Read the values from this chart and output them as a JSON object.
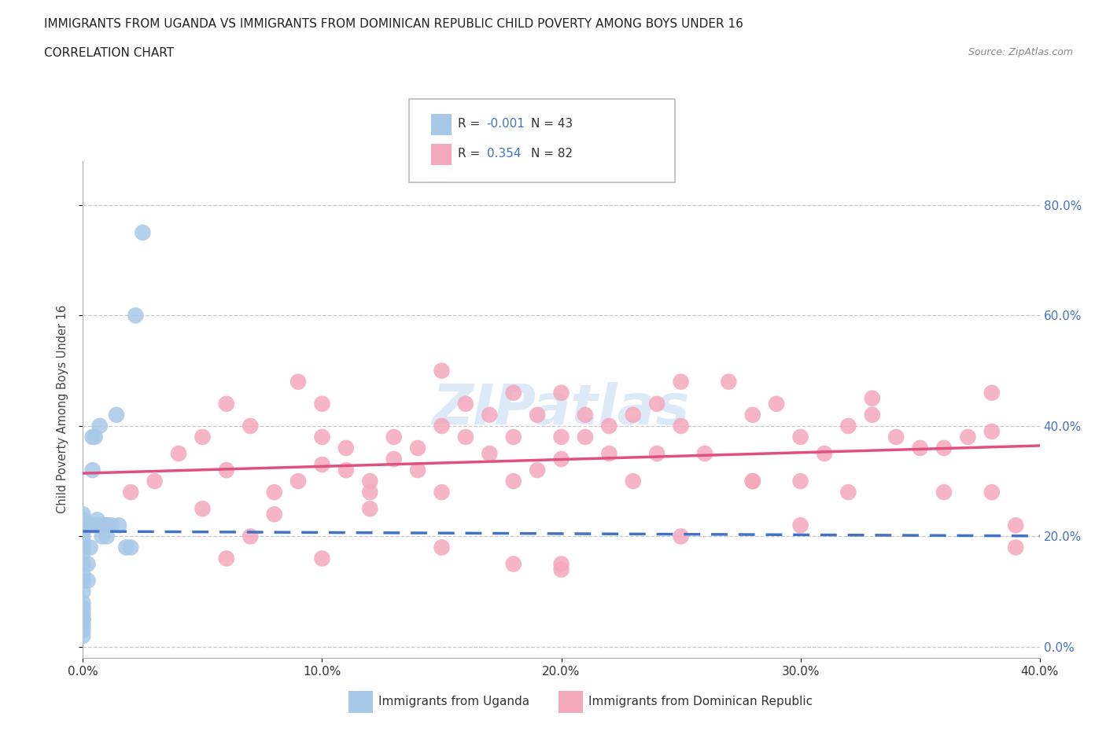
{
  "title": "IMMIGRANTS FROM UGANDA VS IMMIGRANTS FROM DOMINICAN REPUBLIC CHILD POVERTY AMONG BOYS UNDER 16",
  "subtitle": "CORRELATION CHART",
  "source": "Source: ZipAtlas.com",
  "ylabel": "Child Poverty Among Boys Under 16",
  "legend_label1": "Immigrants from Uganda",
  "legend_label2": "Immigrants from Dominican Republic",
  "R1": "-0.001",
  "N1": "43",
  "R2": "0.354",
  "N2": "82",
  "color_uganda": "#a8c8e8",
  "color_dominican": "#f4a8bc",
  "color_uganda_line": "#4472c4",
  "color_dominican_line": "#e05080",
  "color_R_value": "#4472c4",
  "watermark": "ZIPatlas",
  "uganda_x": [
    0.0,
    0.0,
    0.0,
    0.0,
    0.0,
    0.0,
    0.0,
    0.0,
    0.0,
    0.0,
    0.0,
    0.0,
    0.0,
    0.0,
    0.0,
    0.0,
    0.0,
    0.0,
    0.0,
    0.0,
    0.002,
    0.002,
    0.002,
    0.003,
    0.003,
    0.004,
    0.004,
    0.005,
    0.005,
    0.006,
    0.006,
    0.007,
    0.008,
    0.009,
    0.01,
    0.01,
    0.012,
    0.014,
    0.015,
    0.018,
    0.02,
    0.022,
    0.025
  ],
  "uganda_y": [
    0.05,
    0.07,
    0.1,
    0.12,
    0.13,
    0.15,
    0.17,
    0.18,
    0.19,
    0.2,
    0.21,
    0.22,
    0.23,
    0.24,
    0.02,
    0.03,
    0.04,
    0.05,
    0.06,
    0.08,
    0.12,
    0.15,
    0.22,
    0.18,
    0.22,
    0.32,
    0.38,
    0.22,
    0.38,
    0.22,
    0.23,
    0.4,
    0.2,
    0.22,
    0.2,
    0.22,
    0.22,
    0.42,
    0.22,
    0.18,
    0.18,
    0.6,
    0.75
  ],
  "dominican_x": [
    0.01,
    0.02,
    0.03,
    0.04,
    0.05,
    0.05,
    0.06,
    0.06,
    0.07,
    0.08,
    0.09,
    0.09,
    0.1,
    0.1,
    0.1,
    0.11,
    0.11,
    0.12,
    0.12,
    0.13,
    0.13,
    0.14,
    0.14,
    0.15,
    0.15,
    0.15,
    0.16,
    0.16,
    0.17,
    0.17,
    0.18,
    0.18,
    0.18,
    0.19,
    0.19,
    0.2,
    0.2,
    0.2,
    0.21,
    0.21,
    0.22,
    0.22,
    0.23,
    0.23,
    0.24,
    0.24,
    0.25,
    0.25,
    0.26,
    0.27,
    0.28,
    0.28,
    0.29,
    0.3,
    0.3,
    0.3,
    0.31,
    0.32,
    0.32,
    0.33,
    0.34,
    0.35,
    0.36,
    0.36,
    0.37,
    0.38,
    0.38,
    0.38,
    0.39,
    0.39,
    0.2,
    0.15,
    0.1,
    0.07,
    0.25,
    0.12,
    0.18,
    0.08,
    0.06,
    0.28,
    0.33,
    0.2
  ],
  "dominican_y": [
    0.22,
    0.28,
    0.3,
    0.35,
    0.38,
    0.25,
    0.32,
    0.44,
    0.4,
    0.28,
    0.3,
    0.48,
    0.33,
    0.38,
    0.44,
    0.32,
    0.36,
    0.3,
    0.28,
    0.34,
    0.38,
    0.32,
    0.36,
    0.4,
    0.28,
    0.5,
    0.44,
    0.38,
    0.42,
    0.35,
    0.3,
    0.38,
    0.46,
    0.32,
    0.42,
    0.38,
    0.34,
    0.46,
    0.38,
    0.42,
    0.4,
    0.35,
    0.42,
    0.3,
    0.44,
    0.35,
    0.4,
    0.48,
    0.35,
    0.48,
    0.42,
    0.3,
    0.44,
    0.38,
    0.3,
    0.22,
    0.35,
    0.4,
    0.28,
    0.42,
    0.38,
    0.36,
    0.36,
    0.28,
    0.38,
    0.39,
    0.28,
    0.46,
    0.22,
    0.18,
    0.15,
    0.18,
    0.16,
    0.2,
    0.2,
    0.25,
    0.15,
    0.24,
    0.16,
    0.3,
    0.45,
    0.14
  ],
  "xlim": [
    0.0,
    0.4
  ],
  "ylim": [
    -0.02,
    0.88
  ],
  "x_ticks": [
    0.0,
    0.1,
    0.2,
    0.3,
    0.4
  ],
  "y_ticks": [
    0.0,
    0.2,
    0.4,
    0.6,
    0.8
  ],
  "background_color": "#ffffff",
  "grid_color": "#c8c8c8"
}
